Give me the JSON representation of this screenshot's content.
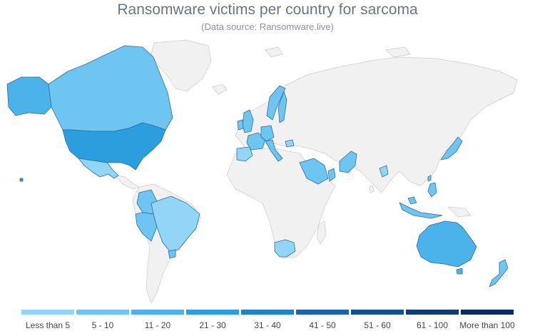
{
  "title": "Ransomware victims per country for sarcoma",
  "subtitle": "(Data source: Ransomware.live)",
  "colors": {
    "no_data": "#f1f1f1",
    "bins": [
      "#93d5f7",
      "#6fc5f2",
      "#4cb3ea",
      "#2c9ede",
      "#1f83c6",
      "#1967aa",
      "#154f8c",
      "#103b73",
      "#0a2a5e"
    ]
  },
  "legend": [
    {
      "label": "Less than 5",
      "color": "#93d5f7"
    },
    {
      "label": "5 - 10",
      "color": "#6fc5f2"
    },
    {
      "label": "11 - 20",
      "color": "#4cb3ea"
    },
    {
      "label": "21 - 30",
      "color": "#2c9ede"
    },
    {
      "label": "31 - 40",
      "color": "#1f83c6"
    },
    {
      "label": "41 - 50",
      "color": "#1967aa"
    },
    {
      "label": "51 - 60",
      "color": "#154f8c"
    },
    {
      "label": "61 - 100",
      "color": "#103b73"
    },
    {
      "label": "More than 100",
      "color": "#0a2a5e"
    }
  ],
  "highlighted_countries": [
    {
      "country": "USA",
      "bin": 3
    },
    {
      "country": "Canada",
      "bin": 2
    },
    {
      "country": "Alaska",
      "bin": 2
    },
    {
      "country": "Mexico",
      "bin": 0
    },
    {
      "country": "Colombia",
      "bin": 1
    },
    {
      "country": "Peru",
      "bin": 1
    },
    {
      "country": "Brazil",
      "bin": 0
    },
    {
      "country": "Uruguay",
      "bin": 1
    },
    {
      "country": "United Kingdom",
      "bin": 1
    },
    {
      "country": "Ireland",
      "bin": 1
    },
    {
      "country": "France",
      "bin": 1
    },
    {
      "country": "Spain",
      "bin": 0
    },
    {
      "country": "Germany",
      "bin": 1
    },
    {
      "country": "Italy",
      "bin": 1
    },
    {
      "country": "Sweden",
      "bin": 1
    },
    {
      "country": "Norway",
      "bin": 1
    },
    {
      "country": "Bulgaria",
      "bin": 0
    },
    {
      "country": "Saudi Arabia",
      "bin": 1
    },
    {
      "country": "Oman",
      "bin": 1
    },
    {
      "country": "Pakistan",
      "bin": 1
    },
    {
      "country": "India",
      "bin": 0
    },
    {
      "country": "Japan",
      "bin": 1
    },
    {
      "country": "Taiwan",
      "bin": 1
    },
    {
      "country": "Philippines",
      "bin": 1
    },
    {
      "country": "Malaysia",
      "bin": 1
    },
    {
      "country": "Indonesia",
      "bin": 1
    },
    {
      "country": "South Africa",
      "bin": 0
    },
    {
      "country": "Australia",
      "bin": 2
    },
    {
      "country": "New Zealand",
      "bin": 1
    }
  ]
}
